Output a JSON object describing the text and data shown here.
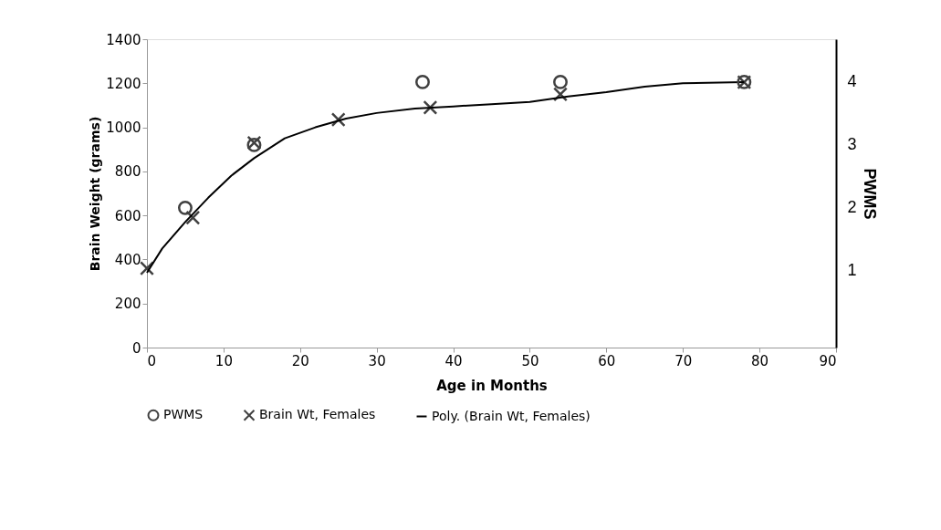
{
  "chart_data": {
    "type": "scatter",
    "xlabel": "Age in Months",
    "ylabel": "Brain Weight (grams)",
    "y2label": "PWMS",
    "xlim": [
      0,
      90
    ],
    "xticks": [
      0,
      10,
      20,
      30,
      40,
      50,
      60,
      70,
      80,
      90
    ],
    "ylim": [
      0,
      1400
    ],
    "yticks": [
      0,
      200,
      400,
      600,
      800,
      1000,
      1200,
      1400
    ],
    "y2lim": [
      -0.22,
      4.68
    ],
    "y2ticks": [
      1,
      2,
      3,
      4
    ],
    "grid": false,
    "legend": "bottom",
    "series": [
      {
        "name": "PWMS",
        "type": "scatter",
        "marker": "circle",
        "axis": "y2",
        "color": "#404040",
        "x": [
          5,
          14,
          36,
          54,
          78
        ],
        "values": [
          2,
          3,
          4,
          4,
          4
        ]
      },
      {
        "name": "Brain Wt, Females",
        "type": "scatter",
        "marker": "cross",
        "color": "#404040",
        "x": [
          0,
          6,
          14,
          25,
          37,
          54,
          78
        ],
        "values": [
          360,
          590,
          930,
          1035,
          1090,
          1150,
          1205
        ]
      },
      {
        "name": "Poly. (Brain Wt, Females)",
        "type": "line",
        "marker": "none",
        "color": "#000000",
        "x": [
          0,
          2,
          5,
          8,
          11,
          14,
          18,
          22,
          26,
          30,
          35,
          40,
          45,
          50,
          55,
          60,
          65,
          70,
          78
        ],
        "values": [
          340,
          450,
          570,
          680,
          780,
          860,
          950,
          1000,
          1040,
          1065,
          1085,
          1095,
          1105,
          1115,
          1140,
          1160,
          1185,
          1200,
          1205
        ]
      }
    ]
  }
}
